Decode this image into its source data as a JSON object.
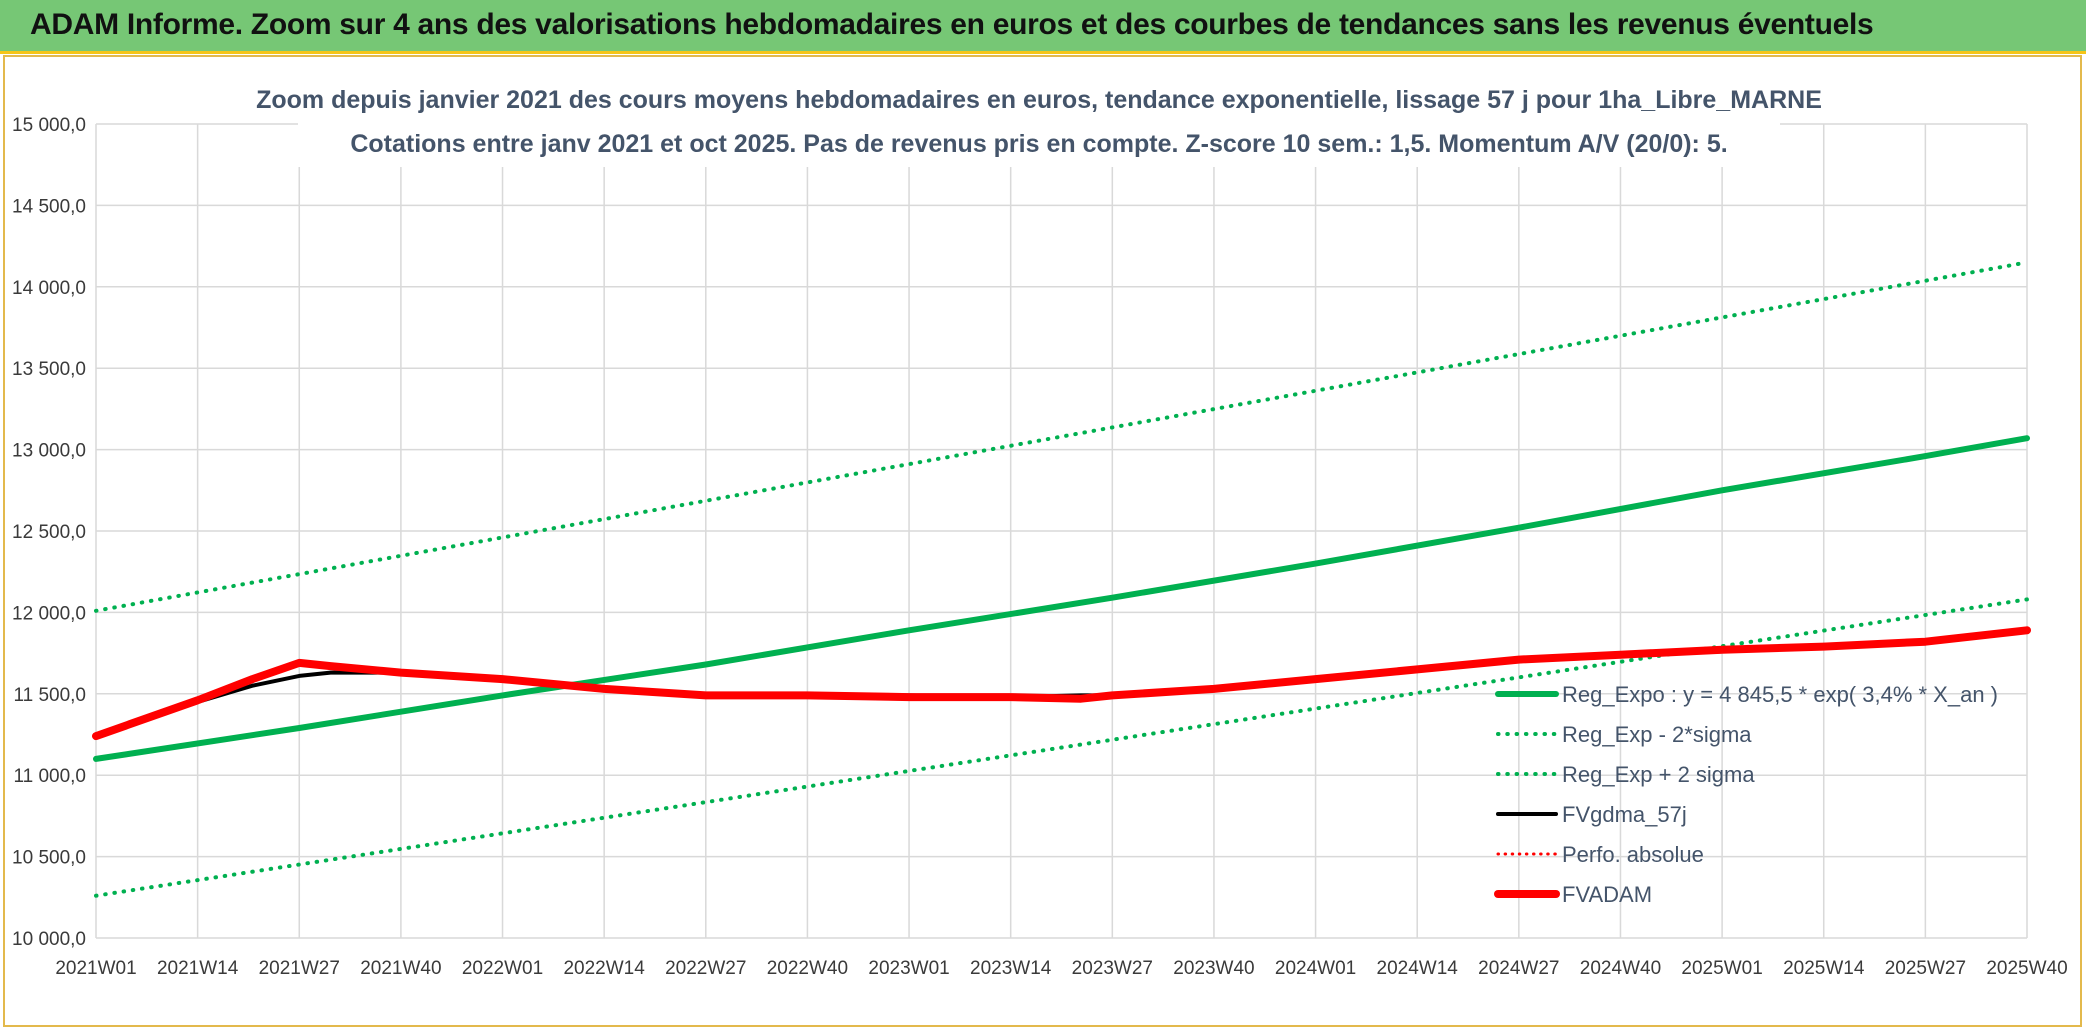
{
  "banner": {
    "title": "ADAM Informe. Zoom sur 4 ans des valorisations hebdomadaires en euros et des courbes de tendances sans les revenus éventuels"
  },
  "colors": {
    "banner_bg": "#76c775",
    "banner_border": "#f5c518",
    "green": "#00b050",
    "black": "#000000",
    "red": "#ff0000",
    "grid": "#d9d9d9",
    "title_text": "#44546a"
  },
  "chart_data": {
    "type": "line",
    "title": "Zoom depuis janvier 2021 des cours moyens hebdomadaires en euros, tendance exponentielle, lissage 57 j pour 1ha_Libre_MARNE",
    "subtitle": "Cotations entre janv 2021 et oct 2025. Pas de revenus pris en compte. Z-score 10 sem.: 1,5. Momentum A/V (20/0): 5.",
    "xlabel": "",
    "ylabel": "",
    "ylim": [
      10000,
      15000
    ],
    "y_ticks": [
      10000,
      10500,
      11000,
      11500,
      12000,
      12500,
      13000,
      13500,
      14000,
      14500,
      15000
    ],
    "y_tick_labels": [
      "10 000,0",
      "10 500,0",
      "11 000,0",
      "11 500,0",
      "12 000,0",
      "12 500,0",
      "13 000,0",
      "13 500,0",
      "14 000,0",
      "14 500,0",
      "15 000,0"
    ],
    "x_ticks": [
      0,
      13,
      26,
      39,
      52,
      65,
      78,
      91,
      104,
      117,
      130,
      143,
      156,
      169,
      182,
      195,
      208,
      221,
      234,
      247
    ],
    "x_tick_labels": [
      "2021W01",
      "2021W14",
      "2021W27",
      "2021W40",
      "2022W01",
      "2022W14",
      "2022W27",
      "2022W40",
      "2023W01",
      "2023W14",
      "2023W27",
      "2023W40",
      "2024W01",
      "2024W14",
      "2024W27",
      "2024W40",
      "2025W01",
      "2025W14",
      "2025W27",
      "2025W40"
    ],
    "x_range": [
      0,
      247
    ],
    "grid": true,
    "legend_position": "right",
    "series": [
      {
        "name": "Reg_Expo : y = 4 845,5 * exp( 3,4% *  X_an )",
        "style": "solid",
        "color": "#00b050",
        "width": 6,
        "x": [
          0,
          26,
          52,
          78,
          104,
          130,
          156,
          182,
          208,
          234,
          247
        ],
        "y": [
          11100,
          11290,
          11490,
          11680,
          11890,
          12090,
          12300,
          12520,
          12750,
          12960,
          13070
        ]
      },
      {
        "name": "Reg_Exp - 2*sigma",
        "style": "dotted",
        "color": "#00b050",
        "width": 4,
        "x": [
          0,
          247
        ],
        "y": [
          10260,
          12080
        ]
      },
      {
        "name": "Reg_Exp + 2 sigma",
        "style": "dotted",
        "color": "#00b050",
        "width": 4,
        "x": [
          0,
          247
        ],
        "y": [
          12010,
          14150
        ]
      },
      {
        "name": "FVgdma_57j",
        "style": "solid",
        "color": "#000000",
        "width": 4,
        "x": [
          0,
          13,
          20,
          26,
          30,
          39,
          52,
          65,
          78,
          91,
          104,
          117,
          126,
          130,
          143,
          156,
          169,
          182,
          195,
          208,
          221,
          234,
          247
        ],
        "y": [
          11240,
          11450,
          11550,
          11610,
          11630,
          11630,
          11580,
          11530,
          11490,
          11490,
          11490,
          11480,
          11490,
          11490,
          11530,
          11590,
          11650,
          11700,
          11740,
          11760,
          11790,
          11820,
          11880
        ]
      },
      {
        "name": "Perfo. absolue",
        "style": "dotted",
        "color": "#ff0000",
        "width": 3,
        "x": [],
        "y": []
      },
      {
        "name": "FVADAM",
        "style": "solid",
        "color": "#ff0000",
        "width": 8,
        "x": [
          0,
          13,
          20,
          26,
          30,
          39,
          52,
          65,
          78,
          91,
          104,
          117,
          126,
          130,
          143,
          156,
          169,
          182,
          195,
          208,
          221,
          234,
          247
        ],
        "y": [
          11240,
          11460,
          11590,
          11690,
          11670,
          11630,
          11590,
          11530,
          11490,
          11490,
          11480,
          11480,
          11470,
          11490,
          11530,
          11590,
          11650,
          11710,
          11740,
          11770,
          11790,
          11820,
          11890
        ]
      }
    ]
  }
}
